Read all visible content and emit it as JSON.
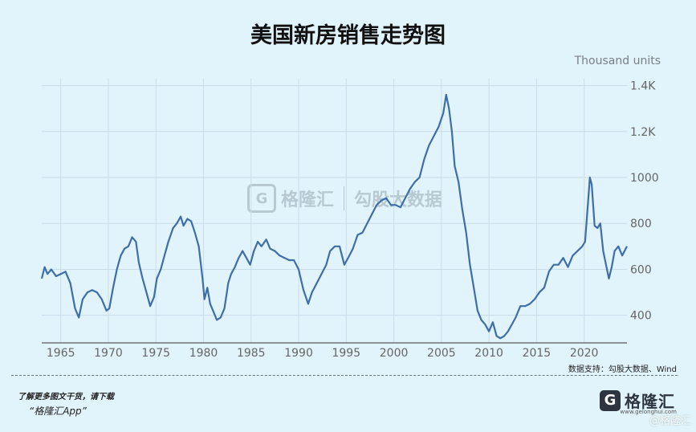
{
  "title": "美国新房销售走势图",
  "source": "数据支持：勾股大数据、Wind",
  "footer": {
    "download_text": "了解更多图文干货，请下载",
    "app_text": "“格隆汇App”",
    "brand_name": "格隆汇",
    "brand_sub": "www.gelonghui.com",
    "corner_mark": "@格隆汇"
  },
  "watermark": {
    "brand": "格隆汇",
    "data": "勾股大数据"
  },
  "colors": {
    "background": "#e1f3fb",
    "line": "#3e6ea8",
    "grid": "#c9dee9"
  },
  "chart_data": {
    "type": "line",
    "title": "美国新房销售走势图",
    "y_unit_label": "Thousand units",
    "xlim": [
      1963,
      2024.5
    ],
    "ylim": [
      280,
      1430
    ],
    "x_ticks": [
      1965,
      1970,
      1975,
      1980,
      1985,
      1990,
      1995,
      2000,
      2005,
      2010,
      2015,
      2020
    ],
    "x_tick_labels": [
      "1965",
      "1970",
      "1975",
      "1980",
      "1985",
      "1990",
      "1995",
      "2000",
      "2005",
      "2010",
      "2015",
      "2020"
    ],
    "y_ticks": [
      400,
      600,
      800,
      1000,
      1200,
      1400
    ],
    "y_tick_labels": [
      "400",
      "600",
      "800",
      "1000",
      "1.2K",
      "1.4K"
    ],
    "grid": true,
    "series": [
      {
        "x": [
          1963.0,
          1963.3,
          1963.6,
          1964.0,
          1964.5,
          1965.0,
          1965.5,
          1966.0,
          1966.5,
          1966.9,
          1967.3,
          1967.8,
          1968.3,
          1968.8,
          1969.3,
          1969.8,
          1970.1,
          1970.5,
          1970.9,
          1971.3,
          1971.7,
          1972.1,
          1972.5,
          1972.9,
          1973.2,
          1973.6,
          1974.0,
          1974.4,
          1974.8,
          1975.1,
          1975.5,
          1975.9,
          1976.3,
          1976.8,
          1977.2,
          1977.6,
          1977.9,
          1978.3,
          1978.7,
          1979.1,
          1979.5,
          1979.9,
          1980.1,
          1980.4,
          1980.7,
          1981.0,
          1981.4,
          1981.8,
          1982.2,
          1982.6,
          1982.9,
          1983.3,
          1983.7,
          1984.1,
          1984.5,
          1984.9,
          1985.3,
          1985.7,
          1986.1,
          1986.6,
          1987.0,
          1987.5,
          1988.0,
          1988.5,
          1989.0,
          1989.5,
          1990.0,
          1990.5,
          1991.0,
          1991.4,
          1991.9,
          1992.4,
          1992.9,
          1993.3,
          1993.8,
          1994.3,
          1994.8,
          1995.2,
          1995.7,
          1996.2,
          1996.7,
          1997.2,
          1997.7,
          1998.2,
          1998.7,
          1999.2,
          1999.7,
          2000.2,
          2000.7,
          2001.2,
          2001.7,
          2002.2,
          2002.7,
          2003.2,
          2003.7,
          2004.2,
          2004.7,
          2005.2,
          2005.5,
          2005.8,
          2006.1,
          2006.4,
          2006.8,
          2007.2,
          2007.6,
          2008.0,
          2008.4,
          2008.8,
          2009.2,
          2009.6,
          2010.0,
          2010.4,
          2010.8,
          2011.2,
          2011.6,
          2012.0,
          2012.4,
          2012.8,
          2013.3,
          2013.8,
          2014.3,
          2014.8,
          2015.3,
          2015.8,
          2016.3,
          2016.8,
          2017.3,
          2017.8,
          2018.3,
          2018.8,
          2019.3,
          2019.8,
          2020.1,
          2020.3,
          2020.6,
          2020.8,
          2021.1,
          2021.4,
          2021.7,
          2022.0,
          2022.3,
          2022.6,
          2022.9,
          2023.2,
          2023.6,
          2024.0,
          2024.5
        ],
        "y": [
          560,
          610,
          580,
          600,
          570,
          580,
          590,
          540,
          430,
          390,
          470,
          500,
          510,
          500,
          470,
          420,
          430,
          520,
          600,
          660,
          690,
          700,
          740,
          720,
          630,
          560,
          500,
          440,
          480,
          560,
          600,
          660,
          720,
          780,
          800,
          830,
          790,
          820,
          810,
          760,
          700,
          560,
          470,
          520,
          450,
          420,
          380,
          390,
          430,
          540,
          580,
          610,
          650,
          680,
          650,
          620,
          680,
          720,
          700,
          730,
          690,
          680,
          660,
          650,
          640,
          640,
          600,
          510,
          450,
          500,
          540,
          580,
          620,
          680,
          700,
          700,
          620,
          650,
          690,
          750,
          760,
          800,
          840,
          880,
          900,
          910,
          880,
          880,
          870,
          910,
          950,
          980,
          1000,
          1080,
          1140,
          1180,
          1220,
          1280,
          1360,
          1300,
          1200,
          1050,
          980,
          860,
          760,
          620,
          520,
          420,
          380,
          360,
          330,
          370,
          310,
          300,
          310,
          330,
          360,
          390,
          440,
          440,
          450,
          470,
          500,
          520,
          590,
          620,
          620,
          650,
          610,
          660,
          680,
          700,
          720,
          830,
          1000,
          970,
          790,
          780,
          800,
          680,
          620,
          560,
          610,
          680,
          700,
          660,
          700
        ]
      }
    ]
  }
}
